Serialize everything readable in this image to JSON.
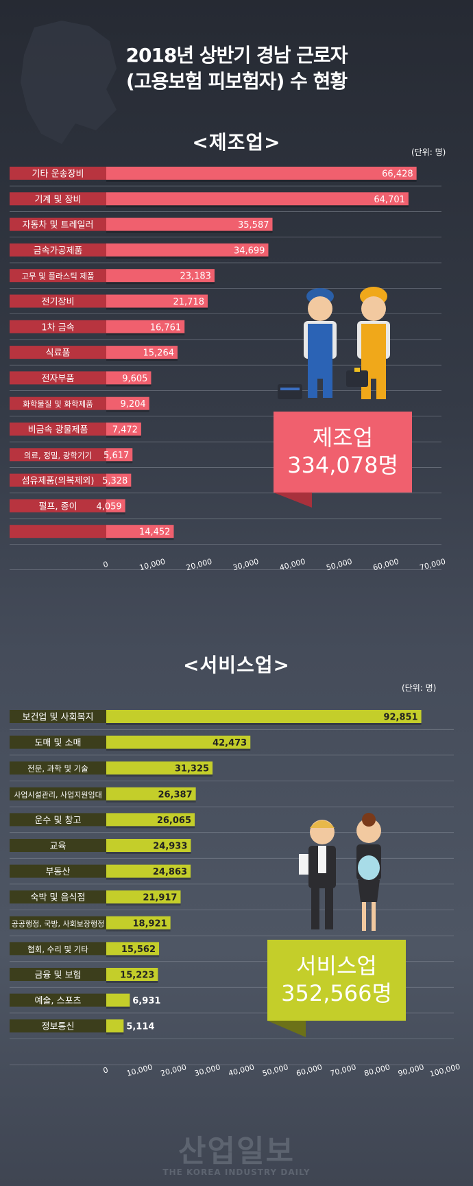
{
  "title_line1": "2018년 상반기 경남 근로자",
  "title_line2": "(고용보험 피보험자) 수 현황",
  "colors": {
    "manu_bar": "#f0606e",
    "manu_label_bg": "#b8343f",
    "serv_bar": "#c4ce2a",
    "serv_label_bg": "#3c3e1c"
  },
  "chart_data": [
    {
      "type": "bar",
      "orientation": "horizontal",
      "title": "<제조업>",
      "unit": "(단위: 명)",
      "categories": [
        "기타 운송장비",
        "기계 및 장비",
        "자동차 및 트레일러",
        "금속가공제품",
        "고무 및 플라스틱 제품",
        "전기장비",
        "1차 금속",
        "식료품",
        "전자부품",
        "화학물질 및 화학제품",
        "비금속 광물제품",
        "의료, 정밀, 광학기기",
        "섬유제품(의복제외)",
        "펄프, 종이",
        ""
      ],
      "values": [
        66428,
        64701,
        35587,
        34699,
        23183,
        21718,
        16761,
        15264,
        9605,
        9204,
        7472,
        5617,
        5328,
        4059,
        14452
      ],
      "value_labels": [
        "66,428",
        "64,701",
        "35,587",
        "34,699",
        "23,183",
        "21,718",
        "16,761",
        "15,264",
        "9,605",
        "9,204",
        "7,472",
        "5,617",
        "5,328",
        "4,059",
        "14,452"
      ],
      "xlim": [
        0,
        70000
      ],
      "ticks": [
        "0",
        "10,000",
        "20,000",
        "30,000",
        "40,000",
        "50,000",
        "60,000",
        "70,000"
      ],
      "total_label": "제조업",
      "total_value": "334,078명"
    },
    {
      "type": "bar",
      "orientation": "horizontal",
      "title": "<서비스업>",
      "unit": "(단위: 명)",
      "categories": [
        "보건업 및 사회복지",
        "도매 및 소매",
        "전문, 과학 및 기술",
        "사업시설관리, 사업지원임대",
        "운수 및 창고",
        "교육",
        "부동산",
        "숙박 및 음식점",
        "공공행정, 국방, 사회보장행정",
        "협회, 수리 및 기타",
        "금융 및 보험",
        "예술, 스포츠",
        "정보통신"
      ],
      "values": [
        92851,
        42473,
        31325,
        26387,
        26065,
        24933,
        24863,
        21917,
        18921,
        15562,
        15223,
        6931,
        5114
      ],
      "value_labels": [
        "92,851",
        "42,473",
        "31,325",
        "26,387",
        "26,065",
        "24,933",
        "24,863",
        "21,917",
        "18,921",
        "15,562",
        "15,223",
        "6,931",
        "5,114"
      ],
      "xlim": [
        0,
        100000
      ],
      "ticks": [
        "0",
        "10,000",
        "20,000",
        "30,000",
        "40,000",
        "50,000",
        "60,000",
        "70,000",
        "80,000",
        "90,000",
        "100,000"
      ],
      "total_label": "서비스업",
      "total_value": "352,566명"
    }
  ],
  "watermark_main": "산업일보",
  "watermark_sub": "THE KOREA INDUSTRY DAILY"
}
